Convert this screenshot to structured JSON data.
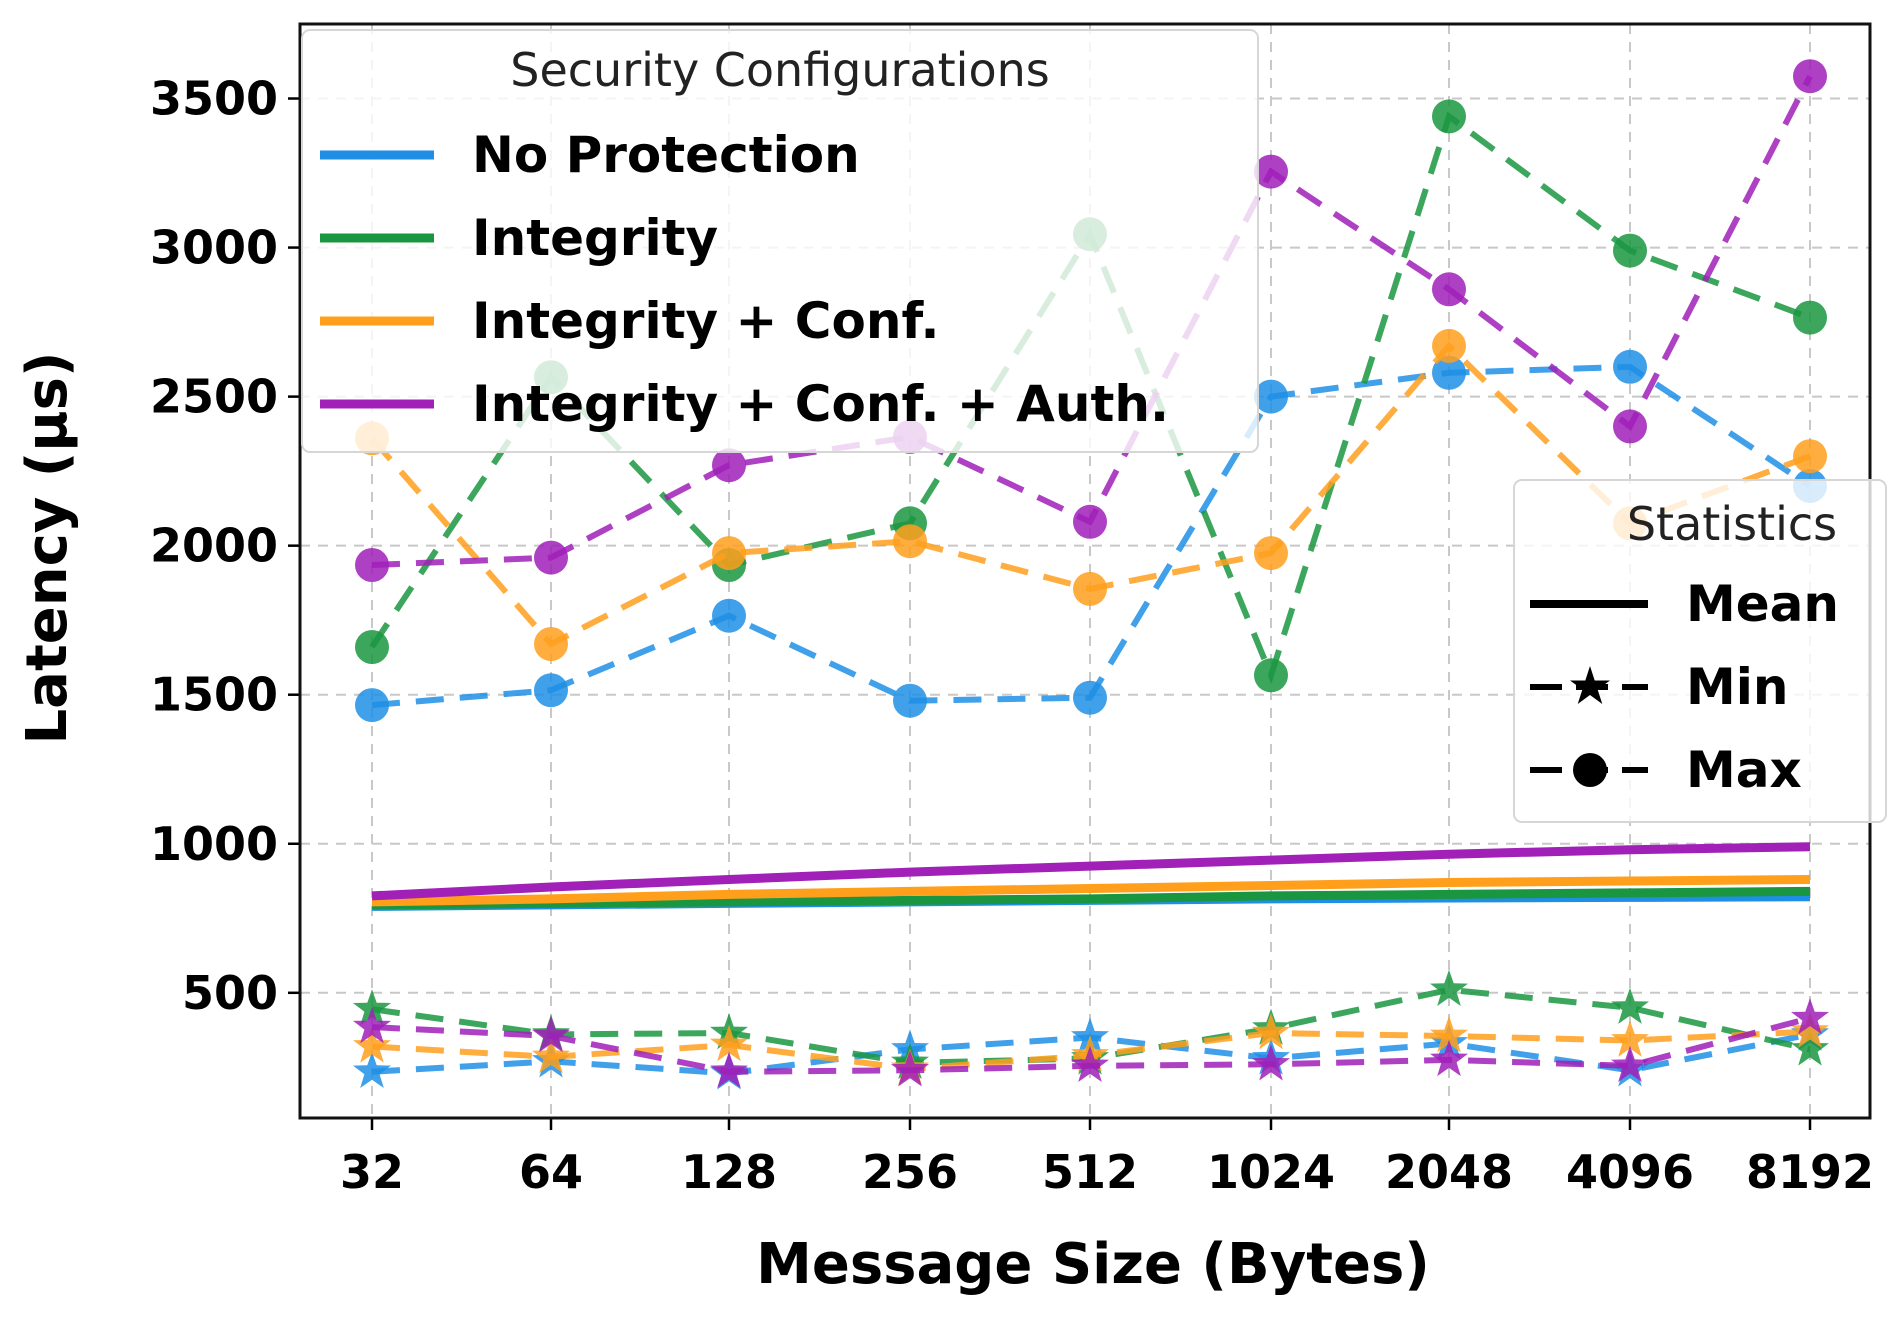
{
  "chart_data": {
    "type": "line",
    "title": "",
    "xlabel": "Message Size (Bytes)",
    "ylabel": "Latency (μs)",
    "categories": [
      "32",
      "64",
      "128",
      "256",
      "512",
      "1024",
      "2048",
      "4096",
      "8192"
    ],
    "y_ticks": [
      500,
      1000,
      1500,
      2000,
      2500,
      3000,
      3500
    ],
    "ylim": [
      80,
      3750
    ],
    "grid": true,
    "series": [
      {
        "name": "No Protection",
        "color": "#1f8fe5",
        "mean": [
          790,
          795,
          800,
          805,
          810,
          815,
          818,
          820,
          822
        ],
        "min": [
          235,
          270,
          230,
          310,
          350,
          280,
          330,
          240,
          360
        ],
        "max": [
          1465,
          1515,
          1765,
          1480,
          1490,
          2500,
          2580,
          2600,
          2200
        ]
      },
      {
        "name": "Integrity",
        "color": "#1a9641",
        "mean": [
          795,
          800,
          805,
          810,
          815,
          825,
          830,
          835,
          840
        ],
        "min": [
          445,
          360,
          365,
          265,
          280,
          380,
          510,
          450,
          310
        ],
        "max": [
          1660,
          2565,
          1935,
          2075,
          3045,
          1565,
          3440,
          2990,
          2765
        ]
      },
      {
        "name": "Integrity + Conf.",
        "color": "#ff9f1c",
        "mean": [
          805,
          815,
          830,
          840,
          850,
          860,
          870,
          875,
          880
        ],
        "min": [
          320,
          285,
          325,
          245,
          290,
          365,
          355,
          340,
          370
        ],
        "max": [
          2360,
          1670,
          1975,
          2015,
          1855,
          1975,
          2670,
          2075,
          2300
        ]
      },
      {
        "name": "Integrity + Conf. + Auth.",
        "color": "#a020b8",
        "mean": [
          825,
          855,
          880,
          905,
          925,
          945,
          965,
          980,
          990
        ],
        "min": [
          385,
          355,
          235,
          240,
          255,
          260,
          275,
          255,
          415
        ],
        "max": [
          1935,
          1960,
          2270,
          2365,
          2080,
          3255,
          2860,
          2400,
          3575
        ]
      }
    ],
    "legend_configs": {
      "title": "Security Configurations",
      "position": "top-left"
    },
    "legend_stats": {
      "title": "Statistics",
      "position": "center-right",
      "entries": [
        {
          "label": "Mean",
          "style": "solid"
        },
        {
          "label": "Min",
          "style": "dashed-star"
        },
        {
          "label": "Max",
          "style": "dashed-circle"
        }
      ]
    }
  }
}
